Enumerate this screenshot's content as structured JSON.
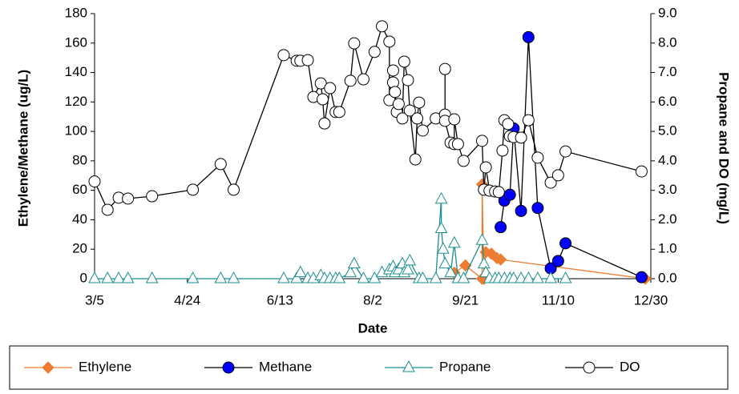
{
  "chart_data": {
    "type": "line",
    "xlabel": "Date",
    "ylabel": "Ethylene/Methane (ug/L)",
    "y2label": "Propane and DO (mg/L)",
    "xlim": [
      0,
      300
    ],
    "xticks": [
      {
        "value": 0,
        "label": "3/5"
      },
      {
        "value": 50,
        "label": "4/24"
      },
      {
        "value": 100,
        "label": "6/13"
      },
      {
        "value": 150,
        "label": "8/2"
      },
      {
        "value": 200,
        "label": "9/21"
      },
      {
        "value": 250,
        "label": "11/10"
      },
      {
        "value": 300,
        "label": "12/30"
      }
    ],
    "ylim": [
      0,
      180
    ],
    "yticks": [
      0,
      20,
      40,
      60,
      80,
      100,
      120,
      140,
      160,
      180
    ],
    "y2lim": [
      0,
      9
    ],
    "y2ticks": [
      {
        "value": 0,
        "label": "0.0"
      },
      {
        "value": 1,
        "label": "1.0"
      },
      {
        "value": 2,
        "label": "2.0"
      },
      {
        "value": 3,
        "label": "3.0"
      },
      {
        "value": 4,
        "label": "4.0"
      },
      {
        "value": 5,
        "label": "5.0"
      },
      {
        "value": 6,
        "label": "6.0"
      },
      {
        "value": 7,
        "label": "7.0"
      },
      {
        "value": 8,
        "label": "8.0"
      },
      {
        "value": 9,
        "label": "9.0"
      }
    ],
    "legend": "bottom",
    "series": [
      {
        "name": "Ethylene",
        "color": "#ed7d31",
        "line_color": "#ed7d31",
        "marker": "diamond",
        "open": false,
        "x": [
          194,
          200,
          209,
          209,
          210,
          211,
          214,
          217,
          219,
          297
        ],
        "values": [
          4,
          9,
          0,
          64,
          0,
          18,
          17,
          14,
          13,
          0
        ]
      },
      {
        "name": "Methane",
        "color": "#0000ff",
        "line_color": "#000000",
        "marker": "circle",
        "open": false,
        "x": [
          219,
          221,
          224,
          226,
          230,
          234,
          239,
          246,
          250,
          254,
          295
        ],
        "values": [
          35,
          53,
          57,
          102,
          46,
          164,
          48,
          7,
          12,
          24,
          1
        ]
      },
      {
        "name": "Propane",
        "color": "#1a8f8f",
        "line_color": "#1a8f8f",
        "marker": "triangle",
        "open": true,
        "axis": "y2",
        "x": [
          0,
          7,
          13,
          18,
          31,
          53,
          68,
          75,
          102,
          109,
          111,
          115,
          118,
          122,
          124,
          127,
          130,
          132,
          138,
          140,
          145,
          151,
          155,
          159,
          161,
          162,
          164,
          166,
          167,
          169,
          170,
          175,
          177,
          184,
          187,
          187,
          188,
          189,
          192,
          194,
          196,
          199,
          209,
          210,
          211,
          213,
          216,
          218,
          221,
          224,
          226,
          230,
          234,
          239,
          246,
          254
        ],
        "values": [
          0,
          0,
          0,
          0,
          0,
          0,
          0,
          0,
          0,
          0,
          0.2,
          0,
          0,
          0.1,
          0,
          0,
          0,
          0,
          0.2,
          0.5,
          0,
          0,
          0.2,
          0.3,
          0.4,
          0.2,
          0.3,
          0.5,
          0.2,
          0.3,
          0.6,
          0,
          0,
          0,
          2.7,
          1.7,
          1.0,
          0.5,
          0.2,
          1.2,
          0,
          0,
          1.3,
          0.5,
          0.2,
          0,
          0,
          0,
          0,
          0,
          0,
          0,
          0,
          0,
          0,
          0
        ]
      },
      {
        "name": "DO",
        "color": "#000000",
        "line_color": "#000000",
        "marker": "circle",
        "open": true,
        "axis": "y2",
        "x": [
          0,
          7,
          13,
          18,
          31,
          53,
          68,
          75,
          102,
          109,
          111,
          115,
          118,
          122,
          123,
          124,
          127,
          130,
          132,
          138,
          140,
          145,
          151,
          155,
          159,
          159,
          161,
          161,
          162,
          163,
          164,
          166,
          167,
          169,
          170,
          173,
          174,
          175,
          177,
          184,
          189,
          189,
          189,
          192,
          194,
          194,
          196,
          199,
          209,
          210,
          211,
          213,
          216,
          218,
          220,
          221,
          223,
          224,
          226,
          230,
          234,
          239,
          246,
          250,
          254,
          295
        ],
        "values": [
          3.3,
          2.34,
          2.75,
          2.72,
          2.8,
          3.02,
          3.89,
          3.02,
          7.59,
          7.4,
          7.4,
          7.42,
          6.17,
          6.63,
          6.09,
          5.27,
          6.47,
          5.66,
          5.66,
          6.72,
          7.99,
          6.77,
          7.7,
          8.57,
          8.05,
          6.06,
          7.07,
          6.66,
          6.34,
          5.66,
          5.93,
          5.44,
          7.37,
          6.74,
          5.71,
          4.05,
          5.44,
          5.98,
          5.03,
          5.44,
          5.57,
          7.12,
          5.36,
          4.62,
          4.57,
          5.41,
          4.57,
          4.0,
          4.68,
          3.02,
          3.78,
          2.99,
          2.96,
          2.94,
          4.35,
          5.38,
          5.25,
          4.84,
          4.81,
          4.79,
          5.38,
          4.11,
          3.26,
          3.51,
          4.32,
          3.64
        ]
      }
    ]
  }
}
